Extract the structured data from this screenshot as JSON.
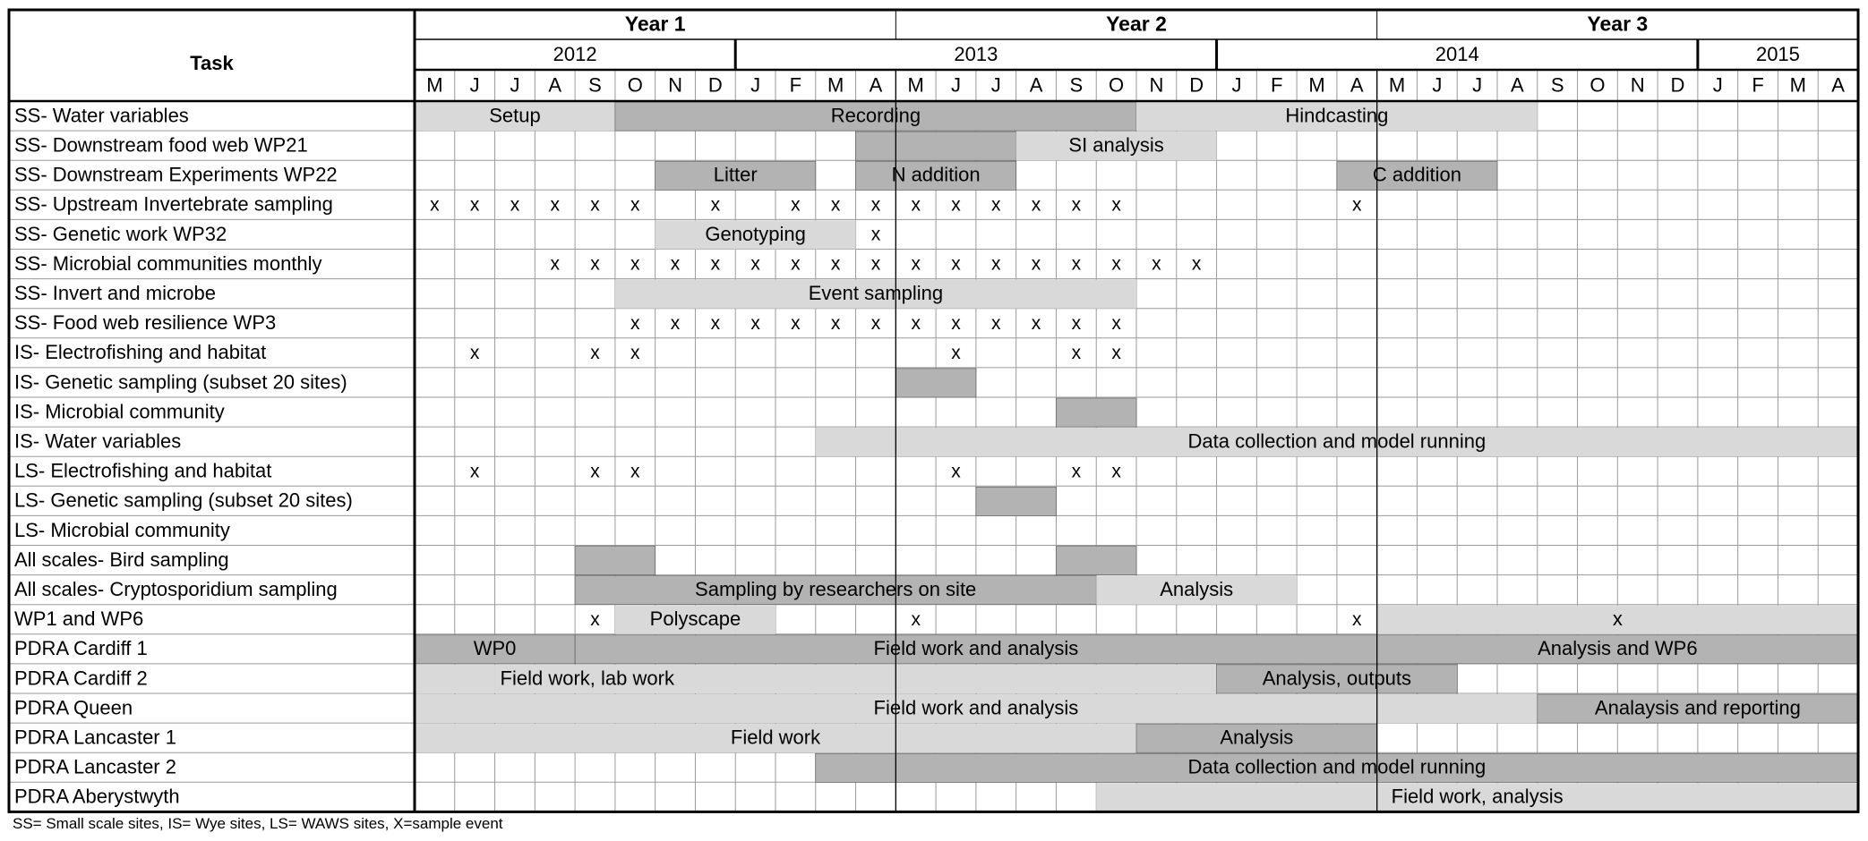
{
  "header": {
    "task": "Task",
    "years": [
      {
        "label": "Year 1",
        "start": 0,
        "end": 12
      },
      {
        "label": "Year 2",
        "start": 12,
        "end": 24
      },
      {
        "label": "Year 3",
        "start": 24,
        "end": 36
      }
    ],
    "calendar_years": [
      {
        "label": "2012",
        "start": 0,
        "end": 8
      },
      {
        "label": "2013",
        "start": 8,
        "end": 20
      },
      {
        "label": "2014",
        "start": 20,
        "end": 32
      },
      {
        "label": "2015",
        "start": 32,
        "end": 36
      }
    ],
    "months": [
      "M",
      "J",
      "J",
      "A",
      "S",
      "O",
      "N",
      "D",
      "J",
      "F",
      "M",
      "A",
      "M",
      "J",
      "J",
      "A",
      "S",
      "O",
      "N",
      "D",
      "J",
      "F",
      "M",
      "A",
      "M",
      "J",
      "J",
      "A",
      "S",
      "O",
      "N",
      "D",
      "J",
      "F",
      "M",
      "A"
    ]
  },
  "colors": {
    "dark": "#b3b3b3",
    "light": "#d9d9d9"
  },
  "mark_text": "x",
  "rows": [
    {
      "task": "SS- Water variables",
      "bars": [
        {
          "start": 0,
          "end": 5,
          "shade": "light",
          "label": "Setup"
        },
        {
          "start": 5,
          "end": 18,
          "shade": "dark",
          "label": "Recording"
        },
        {
          "start": 18,
          "end": 28,
          "shade": "light",
          "label": "Hindcasting"
        }
      ],
      "marks": []
    },
    {
      "task": "SS- Downstream food web WP21",
      "bars": [
        {
          "start": 11,
          "end": 15,
          "shade": "dark"
        },
        {
          "start": 15,
          "end": 20,
          "shade": "light",
          "label": "SI analysis"
        }
      ],
      "marks": []
    },
    {
      "task": "SS- Downstream Experiments WP22",
      "bars": [
        {
          "start": 6,
          "end": 10,
          "shade": "dark",
          "label": "Litter"
        },
        {
          "start": 11,
          "end": 15,
          "shade": "dark",
          "label": "N addition"
        },
        {
          "start": 23,
          "end": 27,
          "shade": "dark",
          "label": "C addition"
        }
      ],
      "marks": []
    },
    {
      "task": "SS- Upstream Invertebrate sampling",
      "bars": [],
      "marks": [
        0,
        1,
        2,
        3,
        4,
        5,
        7,
        9,
        10,
        11,
        12,
        13,
        14,
        15,
        16,
        17,
        23
      ]
    },
    {
      "task": "SS- Genetic work WP32",
      "bars": [
        {
          "start": 6,
          "end": 11,
          "shade": "light",
          "label": "Genotyping"
        }
      ],
      "marks": [
        11
      ]
    },
    {
      "task": "SS- Microbial communities monthly",
      "bars": [],
      "marks": [
        3,
        4,
        5,
        6,
        7,
        8,
        9,
        10,
        11,
        12,
        13,
        14,
        15,
        16,
        17,
        18,
        19
      ]
    },
    {
      "task": "SS- Invert and microbe",
      "bars": [
        {
          "start": 5,
          "end": 18,
          "shade": "light",
          "label": "Event sampling"
        }
      ],
      "marks": []
    },
    {
      "task": "SS- Food web resilience WP3",
      "bars": [],
      "marks": [
        5,
        6,
        7,
        8,
        9,
        10,
        11,
        12,
        13,
        14,
        15,
        16,
        17
      ]
    },
    {
      "task": "IS- Electrofishing and habitat",
      "bars": [],
      "marks": [
        1,
        4,
        5,
        13,
        16,
        17
      ]
    },
    {
      "task": "IS- Genetic sampling (subset 20 sites)",
      "bars": [
        {
          "start": 12,
          "end": 14,
          "shade": "dark"
        }
      ],
      "marks": []
    },
    {
      "task": "IS- Microbial community",
      "bars": [
        {
          "start": 16,
          "end": 18,
          "shade": "dark"
        }
      ],
      "marks": []
    },
    {
      "task": "IS- Water variables",
      "bars": [
        {
          "start": 10,
          "end": 36,
          "shade": "light",
          "label": "Data collection and model running"
        }
      ],
      "marks": []
    },
    {
      "task": "LS- Electrofishing and habitat",
      "bars": [],
      "marks": [
        1,
        4,
        5,
        13,
        16,
        17
      ]
    },
    {
      "task": "LS- Genetic sampling (subset 20 sites)",
      "bars": [
        {
          "start": 14,
          "end": 16,
          "shade": "dark"
        }
      ],
      "marks": []
    },
    {
      "task": "LS- Microbial community",
      "bars": [],
      "marks": []
    },
    {
      "task": "All scales- Bird sampling",
      "bars": [
        {
          "start": 4,
          "end": 6,
          "shade": "dark"
        },
        {
          "start": 16,
          "end": 18,
          "shade": "dark"
        }
      ],
      "marks": []
    },
    {
      "task": "All scales- Cryptosporidium sampling",
      "bars": [
        {
          "start": 4,
          "end": 17,
          "shade": "dark",
          "label": "Sampling by researchers on site"
        },
        {
          "start": 17,
          "end": 22,
          "shade": "light",
          "label": "Analysis"
        }
      ],
      "marks": []
    },
    {
      "task": "WP1 and WP6",
      "bars": [
        {
          "start": 5,
          "end": 9,
          "shade": "light",
          "label": "Polyscape"
        },
        {
          "start": 24,
          "end": 36,
          "shade": "light",
          "label": "x"
        }
      ],
      "marks": [
        4,
        12,
        23
      ]
    },
    {
      "task": "PDRA Cardiff 1",
      "bars": [
        {
          "start": 0,
          "end": 4,
          "shade": "dark",
          "label": "WP0"
        },
        {
          "start": 4,
          "end": 24,
          "shade": "dark",
          "label": "Field work and analysis"
        },
        {
          "start": 24,
          "end": 36,
          "shade": "dark",
          "label": "Analysis and WP6"
        }
      ],
      "marks": []
    },
    {
      "task": "PDRA Cardiff 2",
      "bars": [
        {
          "start": 0,
          "end": 2,
          "shade": "light"
        },
        {
          "start": 2,
          "end": 20,
          "shade": "light",
          "label": "Field work, lab work",
          "align": "left"
        },
        {
          "start": 20,
          "end": 26,
          "shade": "dark",
          "label": "Analysis, outputs"
        }
      ],
      "marks": []
    },
    {
      "task": "PDRA Queen",
      "bars": [
        {
          "start": 0,
          "end": 28,
          "shade": "light",
          "label": "Field work and analysis"
        },
        {
          "start": 28,
          "end": 36,
          "shade": "dark",
          "label": "Analaysis and reporting"
        }
      ],
      "marks": []
    },
    {
      "task": "PDRA Lancaster 1",
      "bars": [
        {
          "start": 0,
          "end": 18,
          "shade": "light",
          "label": "Field work"
        },
        {
          "start": 18,
          "end": 24,
          "shade": "dark",
          "label": "Analysis"
        }
      ],
      "marks": []
    },
    {
      "task": "PDRA Lancaster 2",
      "bars": [
        {
          "start": 10,
          "end": 36,
          "shade": "dark",
          "label": "Data collection and model running"
        }
      ],
      "marks": []
    },
    {
      "task": "PDRA Aberystwyth",
      "bars": [
        {
          "start": 17,
          "end": 36,
          "shade": "light",
          "label": "Field work, analysis"
        }
      ],
      "marks": []
    }
  ],
  "footnote": "SS= Small scale sites, IS= Wye sites, LS= WAWS sites, X=sample event"
}
